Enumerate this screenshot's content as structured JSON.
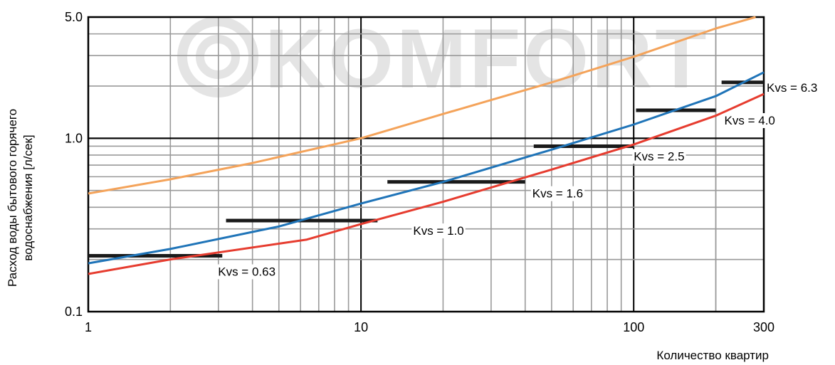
{
  "watermark": "KOMFORT",
  "chart_data": {
    "type": "line",
    "title": "",
    "xlabel": "Количество квартир",
    "ylabel_lines": [
      "Расход воды бытового горячего",
      "водоснабжения [л/сек]"
    ],
    "xscale": "log",
    "yscale": "log",
    "xlim": [
      1,
      300
    ],
    "ylim": [
      0.1,
      5.0
    ],
    "x_tick_labels": [
      {
        "value": 1,
        "label": "1"
      },
      {
        "value": 10,
        "label": "10"
      },
      {
        "value": 100,
        "label": "100"
      },
      {
        "value": 300,
        "label": "300"
      }
    ],
    "y_tick_labels": [
      {
        "value": 0.1,
        "label": "0.1"
      },
      {
        "value": 1.0,
        "label": "1.0"
      },
      {
        "value": 5.0,
        "label": "5.0"
      }
    ],
    "grid": true,
    "series": [
      {
        "color": "#f4a35a",
        "x": [
          1,
          2,
          4,
          10,
          20,
          50,
          100,
          200,
          280
        ],
        "y": [
          0.48,
          0.58,
          0.72,
          1.0,
          1.38,
          2.1,
          2.95,
          4.3,
          5.0
        ]
      },
      {
        "color": "#1f74b8",
        "x": [
          1,
          2,
          5,
          10,
          20,
          50,
          100,
          200,
          300
        ],
        "y": [
          0.19,
          0.23,
          0.31,
          0.42,
          0.56,
          0.86,
          1.2,
          1.75,
          2.4
        ]
      },
      {
        "color": "#e63c2f",
        "x": [
          1,
          2,
          6.3,
          10,
          20,
          50,
          100,
          200,
          300
        ],
        "y": [
          0.165,
          0.2,
          0.26,
          0.32,
          0.43,
          0.66,
          0.92,
          1.35,
          1.8
        ]
      }
    ],
    "kvs_lines": [
      {
        "label": "Kvs = 0.63",
        "y": 0.21,
        "x_from": 1,
        "x_to": 3.1
      },
      {
        "label": "Kvs = 1.0",
        "y": 0.335,
        "x_from": 3.2,
        "x_to": 11.5
      },
      {
        "label": "Kvs = 1.6",
        "y": 0.56,
        "x_from": 12.5,
        "x_to": 40
      },
      {
        "label": "Kvs = 2.5",
        "y": 0.9,
        "x_from": 43,
        "x_to": 100
      },
      {
        "label": "Kvs = 4.0",
        "y": 1.45,
        "x_from": 102,
        "x_to": 200
      },
      {
        "label": "Kvs = 6.3",
        "y": 2.1,
        "x_from": 210,
        "x_to": 300
      }
    ]
  }
}
